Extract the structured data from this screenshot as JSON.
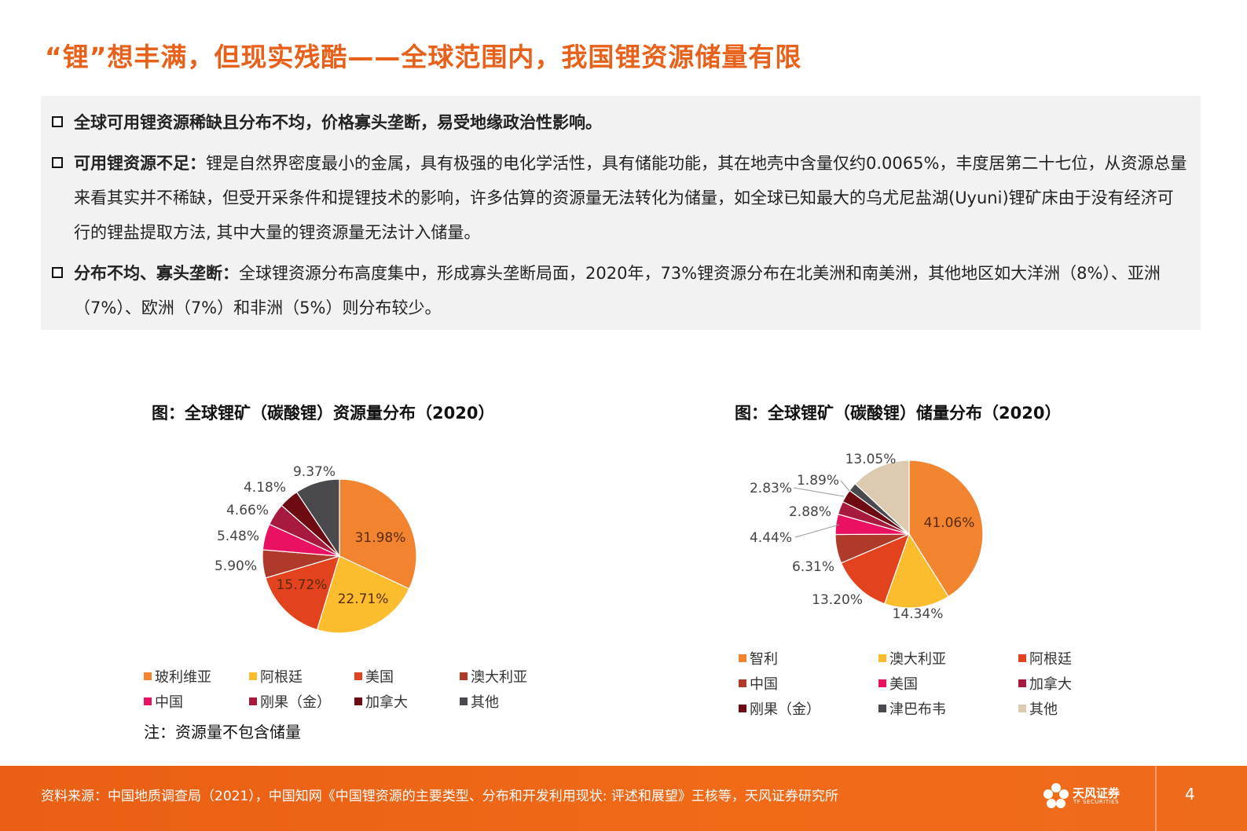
{
  "page": {
    "title": "“锂”想丰满，但现实残酷——全球范围内，我国锂资源储量有限",
    "bullets": [
      {
        "lead": "全球可用锂资源稀缺且分布不均，价格寡头垄断，易受地缘政治性影响。",
        "text": ""
      },
      {
        "lead": "可用锂资源不足：",
        "text": "锂是自然界密度最小的金属，具有极强的电化学活性，具有储能功能，其在地壳中含量仅约0.0065%，丰度居第二十七位，从资源总量来看其实并不稀缺，但受开采条件和提锂技术的影响，许多估算的资源量无法转化为储量，如全球已知最大的乌尤尼盐湖(Uyuni)锂矿床由于没有经济可行的锂盐提取方法, 其中大量的锂资源量无法计入储量。"
      },
      {
        "lead": "分布不均、寡头垄断：",
        "text": "全球锂资源分布高度集中，形成寡头垄断局面，2020年，73%锂资源分布在北美洲和南美洲，其他地区如大洋洲（8%）、亚洲（7%）、欧洲（7%）和非洲（5%）则分布较少。"
      }
    ],
    "note": "注：资源量不包含储量",
    "footer_source": "资料来源：中国地质调查局（2021），中国知网《中国锂资源的主要类型、分布和开发利用现状: 评述和展望》王核等，天风证券研究所",
    "brand": "天风证券",
    "brand_en": "TF SECURITIES",
    "page_number": "4"
  },
  "chart_data": [
    {
      "type": "pie",
      "title": "图：全球锂矿（碳酸锂）资源量分布（2020）",
      "categories": [
        "玻利维亚",
        "阿根廷",
        "美国",
        "澳大利亚",
        "中国",
        "刚果（金）",
        "加拿大",
        "其他"
      ],
      "values": [
        31.98,
        22.71,
        15.72,
        5.9,
        5.48,
        4.66,
        4.18,
        9.37
      ],
      "labels": [
        "31.98%",
        "22.71%",
        "15.72%",
        "5.90%",
        "5.48%",
        "4.66%",
        "4.18%",
        "9.37%"
      ],
      "colors": [
        "#f28430",
        "#fbbd2e",
        "#e2421d",
        "#b03a2a",
        "#ea1163",
        "#a8193e",
        "#6e0a11",
        "#4a4a4e"
      ],
      "legend": "bottom"
    },
    {
      "type": "pie",
      "title": "图：全球锂矿（碳酸锂）储量分布（2020）",
      "categories": [
        "智利",
        "澳大利亚",
        "阿根廷",
        "中国",
        "美国",
        "加拿大",
        "刚果（金）",
        "津巴布韦",
        "其他"
      ],
      "values": [
        41.06,
        14.34,
        13.2,
        6.31,
        4.44,
        2.88,
        2.83,
        1.89,
        13.05
      ],
      "labels": [
        "41.06%",
        "14.34%",
        "13.20%",
        "6.31%",
        "4.44%",
        "2.88%",
        "2.83%",
        "1.89%",
        "13.05%"
      ],
      "colors": [
        "#f28430",
        "#fbbd2e",
        "#e2421d",
        "#b03a2a",
        "#ea1163",
        "#a8193e",
        "#6e0a11",
        "#4a4a4e",
        "#dccbb0"
      ],
      "legend": "bottom"
    }
  ]
}
